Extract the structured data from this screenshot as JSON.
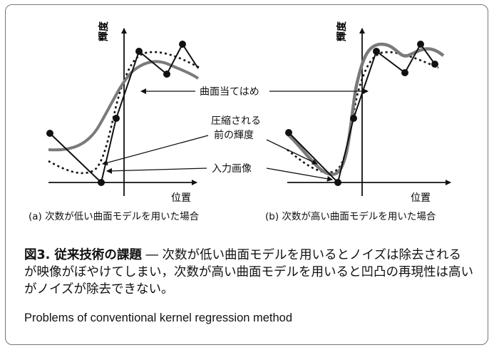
{
  "figure": {
    "y_axis_label": "輝度",
    "x_axis_label": "位置",
    "annotation_curve_fit": "曲面当てはめ",
    "annotation_pre_compression_line1": "圧縮される",
    "annotation_pre_compression_line2": "前の輝度",
    "annotation_input_image": "入力画像",
    "panel_a_caption": "(a) 次数が低い曲面モデルを用いた場合",
    "panel_b_caption": "(b) 次数が高い曲面モデルを用いた場合"
  },
  "caption": {
    "lead": "図3. 従来技術の課題",
    "body": " ― 次数が低い曲面モデルを用いるとノイズは除去されるが映像がぼやけてしまい，次数が高い曲面モデルを用いると凹凸の再現性は高いがノイズが除去できない。",
    "english": "Problems of conventional kernel regression method"
  },
  "colors": {
    "fit_curve": "#7a7a7a",
    "input_line": "#111111",
    "frame": "#777777"
  }
}
